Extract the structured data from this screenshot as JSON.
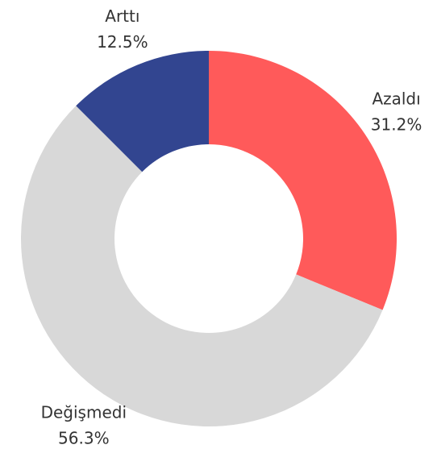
{
  "chart_data": {
    "type": "donut",
    "categories": [
      "Azaldı",
      "Değişmedi",
      "Arttı"
    ],
    "values": [
      31.2,
      56.3,
      12.5
    ],
    "value_labels": [
      "31.2%",
      "56.3%",
      "12.5%"
    ],
    "colors": [
      "#ff5a5a",
      "#d8d8d8",
      "#324590"
    ]
  }
}
